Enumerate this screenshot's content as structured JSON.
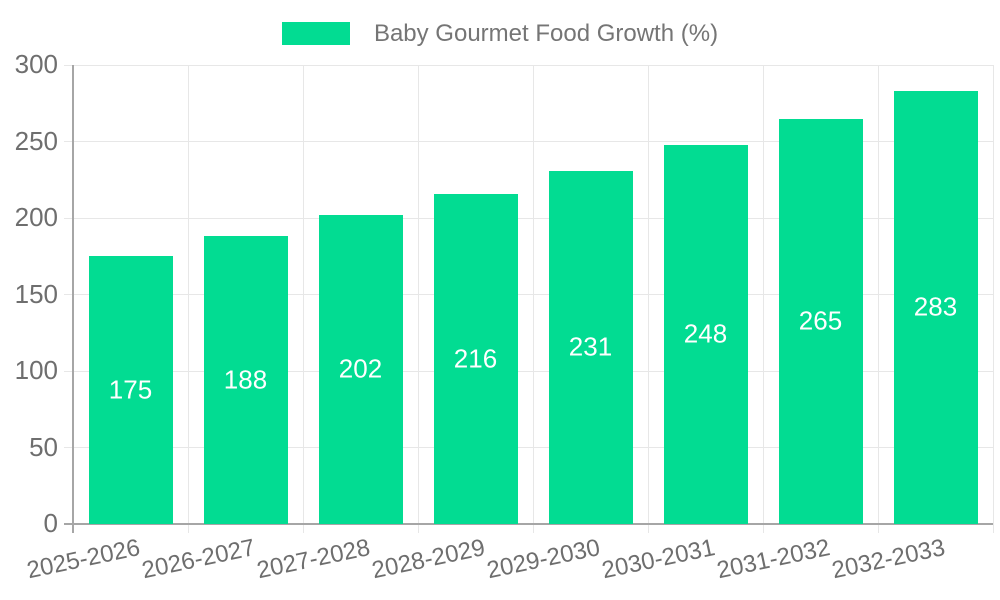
{
  "chart_data": {
    "type": "bar",
    "title": "",
    "legend_label": "Baby Gourmet Food Growth (%)",
    "legend_position": "top-center",
    "categories": [
      "2025-2026",
      "2026-2027",
      "2027-2028",
      "2028-2029",
      "2029-2030",
      "2030-2031",
      "2031-2032",
      "2032-2033"
    ],
    "values": [
      175,
      188,
      202,
      216,
      231,
      248,
      265,
      283
    ],
    "xlabel": "",
    "ylabel": "",
    "ylim": [
      0,
      300
    ],
    "yticks": [
      0,
      50,
      100,
      150,
      200,
      250,
      300
    ],
    "grid": true,
    "x_tick_rotation_deg": -12,
    "value_labels": "inside-center",
    "colors": {
      "bar": "#02DC92",
      "value_label": "#FFFFFF",
      "axis_text": "#6E6E6E",
      "legend_text": "#757575",
      "gridline": "#E7E7E7",
      "axis_line": "#A6A6A6",
      "background": "#FFFFFF"
    }
  }
}
